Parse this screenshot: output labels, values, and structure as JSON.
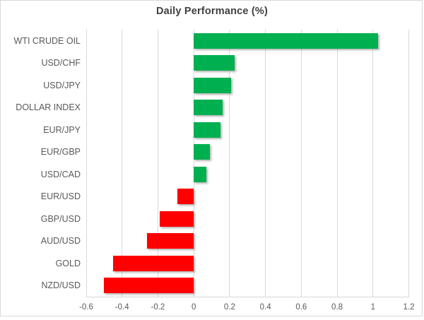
{
  "title": "Daily Performance (%)",
  "chart_data": {
    "type": "bar",
    "orientation": "horizontal",
    "title": "Daily Performance (%)",
    "categories": [
      "WTI CRUDE OIL",
      "USD/CHF",
      "USD/JPY",
      "DOLLAR INDEX",
      "EUR/JPY",
      "EUR/GBP",
      "USD/CAD",
      "EUR/USD",
      "GBP/USD",
      "AUD/USD",
      "GOLD",
      "NZD/USD"
    ],
    "values": [
      1.03,
      0.23,
      0.21,
      0.16,
      0.15,
      0.09,
      0.07,
      -0.09,
      -0.19,
      -0.26,
      -0.45,
      -0.5
    ],
    "xlabel": "",
    "ylabel": "",
    "xlim": [
      -0.6,
      1.2
    ],
    "x_ticks": [
      -0.6,
      -0.4,
      -0.2,
      0,
      0.2,
      0.4,
      0.6,
      0.8,
      1,
      1.2
    ],
    "x_tick_labels": [
      "-0.6",
      "-0.4",
      "-0.2",
      "0",
      "0.2",
      "0.4",
      "0.6",
      "0.8",
      "1",
      "1.2"
    ],
    "grid": true,
    "legend": false,
    "positive_color": "#00B050",
    "negative_color": "#FF0000",
    "gridline_color": "#D9D9D9",
    "label_color": "#595959",
    "title_color": "#404040"
  }
}
